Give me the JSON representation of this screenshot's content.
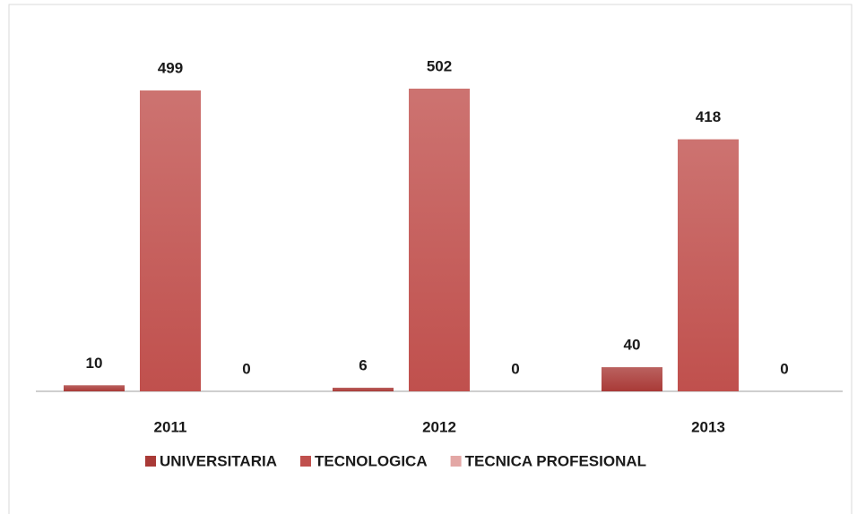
{
  "chart_data": {
    "type": "bar",
    "categories": [
      "2011",
      "2012",
      "2013"
    ],
    "series": [
      {
        "name": "UNIVERSITARIA",
        "color": "#a93a37",
        "values": [
          10,
          6,
          40
        ]
      },
      {
        "name": "TECNOLOGICA",
        "color": "#c0504d",
        "values": [
          499,
          502,
          418
        ]
      },
      {
        "name": "TECNICA PROFESIONAL",
        "color": "#e3a7a5",
        "values": [
          0,
          0,
          0
        ]
      }
    ],
    "legend": "bottom"
  }
}
